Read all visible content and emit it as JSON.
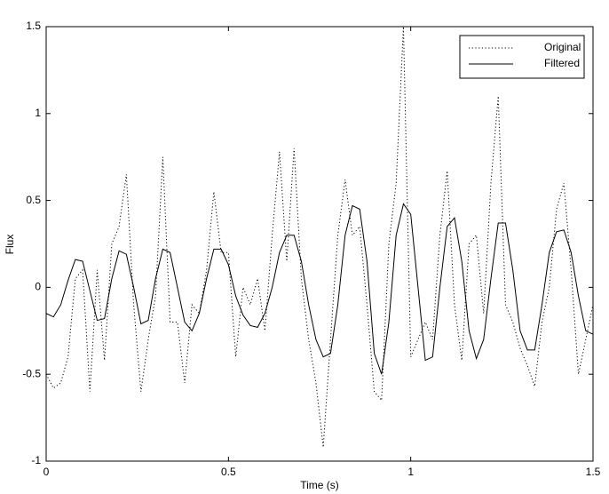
{
  "chart_data": {
    "type": "line",
    "xlabel": "Time (s)",
    "ylabel": "Flux",
    "x": [
      0,
      0.02,
      0.04,
      0.06,
      0.08,
      0.1,
      0.12,
      0.14,
      0.16,
      0.18,
      0.2,
      0.22,
      0.24,
      0.26,
      0.28,
      0.3,
      0.32,
      0.34,
      0.36,
      0.38,
      0.4,
      0.42,
      0.44,
      0.46,
      0.48,
      0.5,
      0.52,
      0.54,
      0.56,
      0.58,
      0.6,
      0.62,
      0.64,
      0.66,
      0.68,
      0.7,
      0.72,
      0.74,
      0.76,
      0.78,
      0.8,
      0.82,
      0.84,
      0.86,
      0.88,
      0.9,
      0.92,
      0.94,
      0.96,
      0.98,
      1,
      1.02,
      1.04,
      1.06,
      1.08,
      1.1,
      1.12,
      1.14,
      1.16,
      1.18,
      1.2,
      1.22,
      1.24,
      1.26,
      1.28,
      1.3,
      1.32,
      1.34,
      1.36,
      1.38,
      1.4,
      1.42,
      1.44,
      1.46,
      1.48,
      1.5
    ],
    "series": [
      {
        "name": "Original",
        "color": "#000000",
        "style": "dotted",
        "values": [
          -0.5,
          -0.58,
          -0.55,
          -0.4,
          0.05,
          0.1,
          -0.6,
          0.1,
          -0.42,
          0.25,
          0.35,
          0.65,
          -0.1,
          -0.6,
          -0.3,
          -0.05,
          0.75,
          -0.2,
          -0.2,
          -0.55,
          -0.1,
          -0.15,
          0.1,
          0.55,
          0.2,
          0.2,
          -0.4,
          0,
          -0.1,
          0.05,
          -0.25,
          0.3,
          0.78,
          0.15,
          0.8,
          0.05,
          -0.3,
          -0.55,
          -0.92,
          -0.3,
          0.3,
          0.62,
          0.3,
          0.35,
          -0.1,
          -0.6,
          -0.65,
          0.25,
          0.6,
          1.5,
          -0.4,
          -0.3,
          -0.2,
          -0.3,
          0.3,
          0.67,
          -0.1,
          -0.42,
          0.25,
          0.3,
          -0.15,
          0.6,
          1.1,
          -0.1,
          -0.2,
          -0.35,
          -0.45,
          -0.57,
          -0.2,
          0,
          0.45,
          0.6,
          0.1,
          -0.5,
          -0.3,
          -0.1
        ]
      },
      {
        "name": "Filtered",
        "color": "#000000",
        "style": "solid",
        "values": [
          -0.15,
          -0.17,
          -0.1,
          0.04,
          0.16,
          0.15,
          -0.02,
          -0.19,
          -0.18,
          0.05,
          0.21,
          0.19,
          0,
          -0.21,
          -0.19,
          0.05,
          0.22,
          0.2,
          0,
          -0.2,
          -0.25,
          -0.15,
          0.05,
          0.22,
          0.22,
          0.13,
          -0.05,
          -0.16,
          -0.22,
          -0.23,
          -0.15,
          0,
          0.2,
          0.3,
          0.3,
          0.15,
          -0.1,
          -0.3,
          -0.4,
          -0.38,
          -0.1,
          0.3,
          0.47,
          0.45,
          0.15,
          -0.38,
          -0.5,
          -0.2,
          0.3,
          0.48,
          0.42,
          0,
          -0.42,
          -0.4,
          0,
          0.35,
          0.4,
          0.15,
          -0.25,
          -0.41,
          -0.3,
          0.05,
          0.37,
          0.37,
          0.1,
          -0.25,
          -0.36,
          -0.36,
          -0.1,
          0.2,
          0.32,
          0.33,
          0.2,
          -0.05,
          -0.25,
          -0.27
        ]
      }
    ],
    "xlim": [
      0,
      1.5
    ],
    "xticks": [
      0,
      0.5,
      1,
      1.5
    ],
    "ylim": [
      -1,
      1.5
    ],
    "yticks": [
      -1,
      -0.5,
      0,
      0.5,
      1,
      1.5
    ],
    "grid": false,
    "legend": "upper-right"
  }
}
